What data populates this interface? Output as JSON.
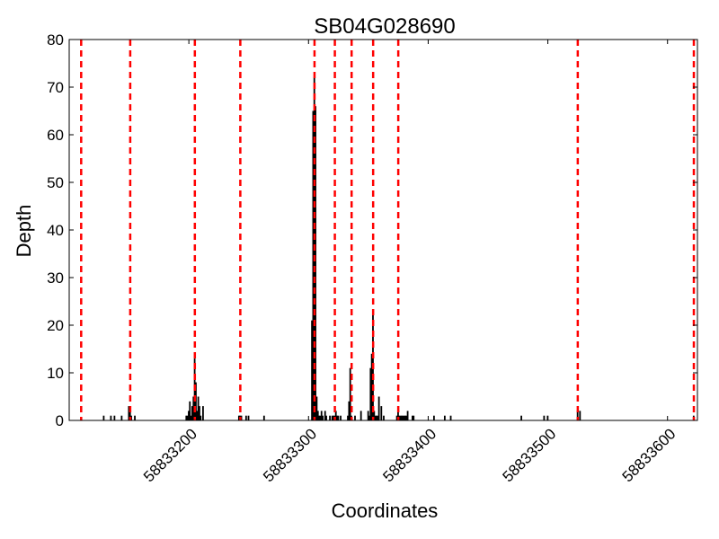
{
  "chart_data": {
    "type": "bar",
    "title": "SB04G028690",
    "xlabel": "Coordinates",
    "ylabel": "Depth",
    "xlim": [
      58833100,
      58833625
    ],
    "ylim": [
      0,
      80
    ],
    "x_ticks": [
      58833200,
      58833300,
      58833400,
      58833500,
      58833600
    ],
    "y_ticks": [
      0,
      10,
      20,
      30,
      40,
      50,
      60,
      70,
      80
    ],
    "grid": false,
    "bar_color": "#000000",
    "marker_color": "#ff0000",
    "marker_positions": [
      58833110,
      58833151,
      58833205,
      58833243,
      58833305,
      58833322,
      58833336,
      58833354,
      58833375,
      58833525,
      58833622
    ],
    "x": [
      58833129,
      58833135,
      58833138,
      58833144,
      58833150,
      58833151,
      58833152,
      58833155,
      58833198,
      58833199,
      58833200,
      58833201,
      58833202,
      58833203,
      58833204,
      58833205,
      58833206,
      58833207,
      58833208,
      58833209,
      58833210,
      58833212,
      58833242,
      58833243,
      58833244,
      58833248,
      58833250,
      58833263,
      58833303,
      58833304,
      58833305,
      58833306,
      58833307,
      58833308,
      58833309,
      58833310,
      58833311,
      58833312,
      58833314,
      58833315,
      58833318,
      58833320,
      58833321,
      58833322,
      58833323,
      58833324,
      58833325,
      58833327,
      58833333,
      58833334,
      58833335,
      58833336,
      58833339,
      58833344,
      58833350,
      58833351,
      58833352,
      58833353,
      58833354,
      58833355,
      58833356,
      58833357,
      58833358,
      58833359,
      58833361,
      58833363,
      58833374,
      58833375,
      58833376,
      58833377,
      58833378,
      58833379,
      58833380,
      58833381,
      58833382,
      58833383,
      58833387,
      58833388,
      58833405,
      58833414,
      58833419,
      58833478,
      58833497,
      58833500,
      58833525,
      58833527,
      58833622
    ],
    "values": [
      1,
      1,
      1,
      1,
      3,
      3,
      1,
      1,
      1,
      1,
      2,
      4,
      1,
      3,
      5,
      13,
      8,
      2,
      5,
      3,
      1,
      3,
      1,
      1,
      1,
      1,
      1,
      1,
      21,
      65,
      72,
      66,
      5,
      2,
      1,
      1,
      2,
      1,
      2,
      1,
      1,
      1,
      1,
      1,
      2,
      1,
      1,
      1,
      1,
      4,
      11,
      1,
      1,
      2,
      2,
      1,
      11,
      14,
      23,
      2,
      1,
      1,
      1,
      5,
      3,
      1,
      1,
      3,
      1,
      1,
      1,
      1,
      1,
      1,
      1,
      2,
      1,
      1,
      1,
      1,
      1,
      1,
      1,
      1,
      2,
      2,
      1
    ]
  }
}
